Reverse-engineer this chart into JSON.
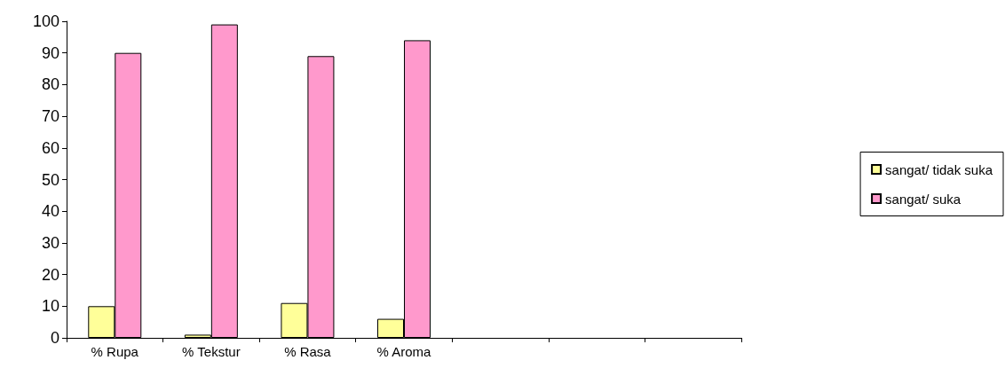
{
  "chart_data": {
    "type": "bar",
    "categories": [
      "% Rupa",
      "% Tekstur",
      "% Rasa",
      "% Aroma",
      null,
      null,
      null
    ],
    "series": [
      {
        "name": "sangat/ tidak suka",
        "color": "#ffff99",
        "values": [
          10,
          1,
          11,
          6,
          null,
          null,
          null
        ]
      },
      {
        "name": "sangat/ suka",
        "color": "#ff99cc",
        "values": [
          90,
          99,
          89,
          94,
          null,
          null,
          null
        ]
      }
    ],
    "ylim": [
      0,
      100
    ],
    "yticks": [
      0,
      10,
      20,
      30,
      40,
      50,
      60,
      70,
      80,
      90,
      100
    ],
    "grid": false,
    "legend": "right"
  }
}
